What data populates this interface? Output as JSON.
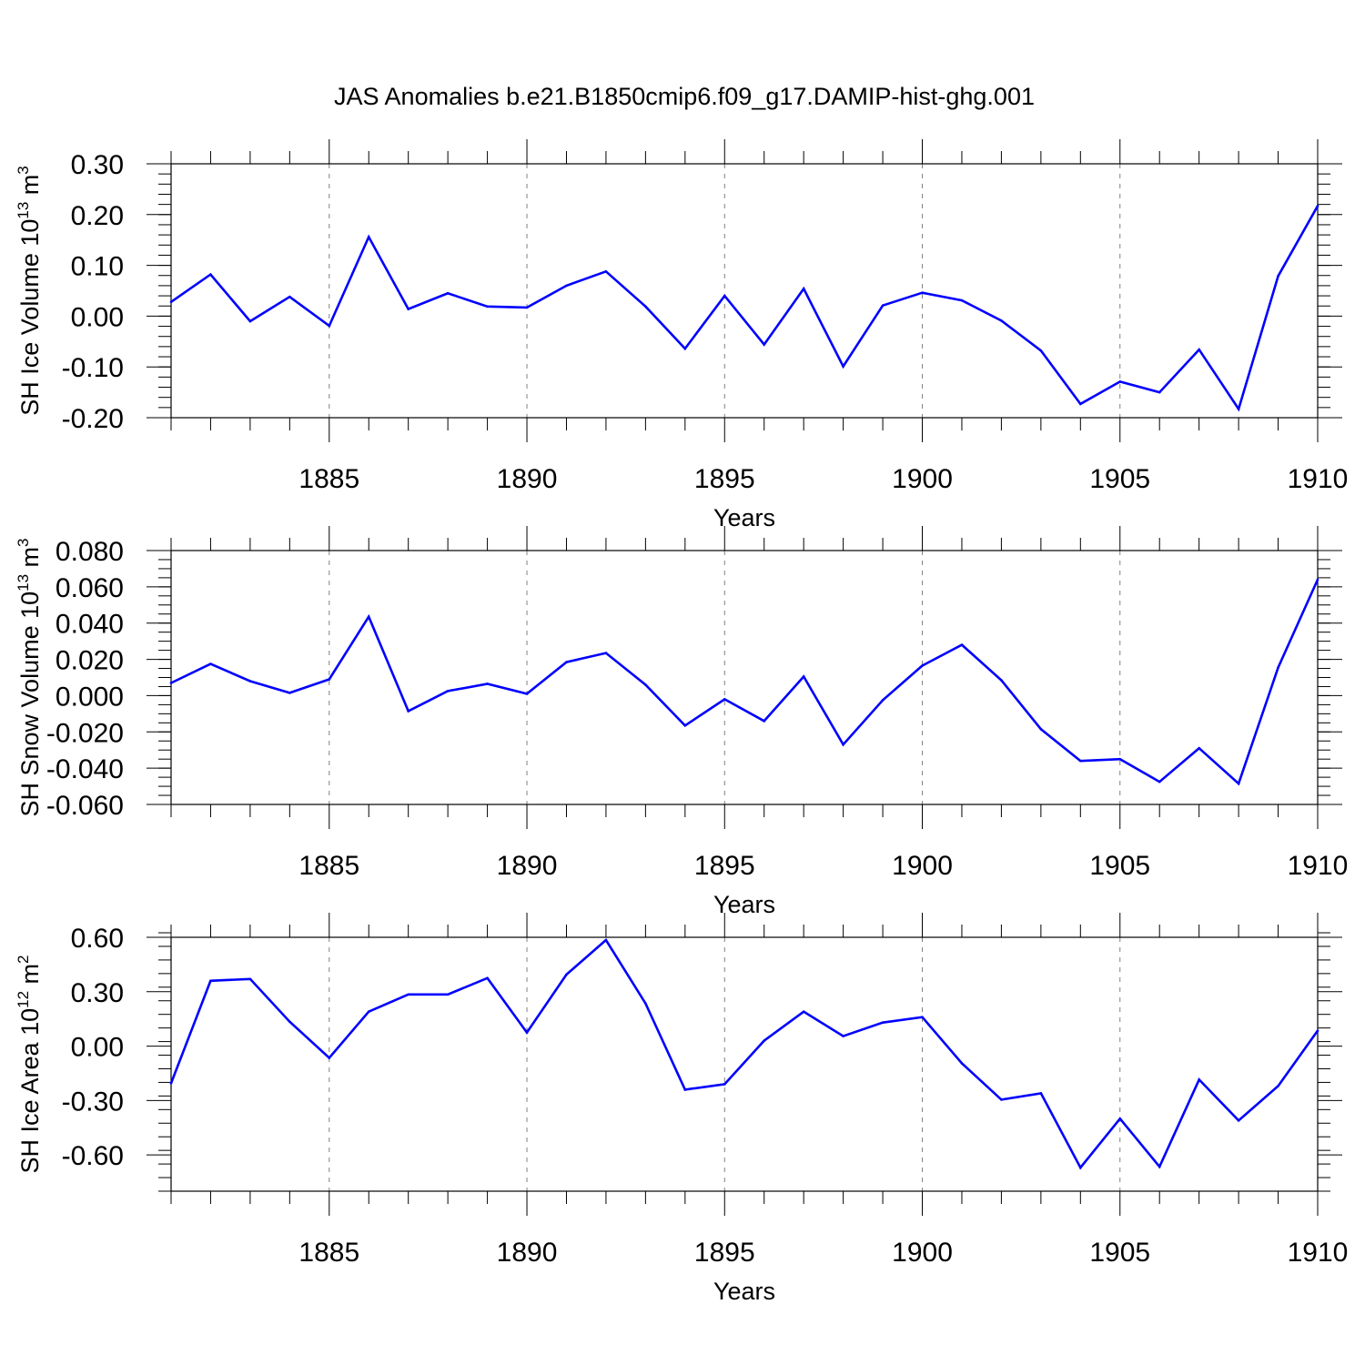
{
  "figure": {
    "title": "JAS Anomalies b.e21.B1850cmip6.f09_g17.DAMIP-hist-ghg.001"
  },
  "colors": {
    "line": "#0000ff",
    "axis": "#000000",
    "grid": "#808080",
    "background": "#ffffff"
  },
  "chart_data": [
    {
      "type": "line",
      "ylabel": {
        "text": "SH Ice Volume 10",
        "exp": "13",
        "unit": " m",
        "unit_exp": "3"
      },
      "xlabel": "Years",
      "xlim": [
        1881,
        1910
      ],
      "ylim": [
        -0.2,
        0.3
      ],
      "yticks": [
        -0.2,
        -0.1,
        0.0,
        0.1,
        0.2,
        0.3
      ],
      "ytick_labels": [
        "-0.20",
        "-0.10",
        "0.00",
        "0.10",
        "0.20",
        "0.30"
      ],
      "yminor_step": 0.02,
      "xticks": [
        1885,
        1890,
        1895,
        1900,
        1905,
        1910
      ],
      "xtick_labels": [
        "1885",
        "1890",
        "1895",
        "1900",
        "1905",
        "1910"
      ],
      "xgrid": "dashed at major ticks",
      "x": [
        1881,
        1882,
        1883,
        1884,
        1885,
        1886,
        1887,
        1888,
        1889,
        1890,
        1891,
        1892,
        1893,
        1894,
        1895,
        1896,
        1897,
        1898,
        1899,
        1900,
        1901,
        1902,
        1903,
        1904,
        1905,
        1906,
        1907,
        1908,
        1909,
        1910
      ],
      "series": [
        {
          "values": [
            0.028,
            0.082,
            -0.01,
            0.038,
            -0.019,
            0.156,
            0.014,
            0.045,
            0.019,
            0.017,
            0.06,
            0.088,
            0.019,
            -0.064,
            0.04,
            -0.056,
            0.054,
            -0.099,
            0.021,
            0.046,
            0.031,
            -0.009,
            -0.068,
            -0.173,
            -0.129,
            -0.15,
            -0.066,
            -0.183,
            0.079,
            0.217
          ]
        }
      ]
    },
    {
      "type": "line",
      "ylabel": {
        "text": "SH Snow Volume 10",
        "exp": "13",
        "unit": " m",
        "unit_exp": "3"
      },
      "xlabel": "Years",
      "xlim": [
        1881,
        1910
      ],
      "ylim": [
        -0.06,
        0.08
      ],
      "yticks": [
        -0.06,
        -0.04,
        -0.02,
        0.0,
        0.02,
        0.04,
        0.06,
        0.08
      ],
      "ytick_labels": [
        "-0.060",
        "-0.040",
        "-0.020",
        "0.000",
        "0.020",
        "0.040",
        "0.060",
        "0.080"
      ],
      "yminor_step": 0.005,
      "xticks": [
        1885,
        1890,
        1895,
        1900,
        1905,
        1910
      ],
      "xtick_labels": [
        "1885",
        "1890",
        "1895",
        "1900",
        "1905",
        "1910"
      ],
      "xgrid": "dashed at major ticks",
      "x": [
        1881,
        1882,
        1883,
        1884,
        1885,
        1886,
        1887,
        1888,
        1889,
        1890,
        1891,
        1892,
        1893,
        1894,
        1895,
        1896,
        1897,
        1898,
        1899,
        1900,
        1901,
        1902,
        1903,
        1904,
        1905,
        1906,
        1907,
        1908,
        1909,
        1910
      ],
      "series": [
        {
          "values": [
            0.007,
            0.0175,
            0.008,
            0.0015,
            0.009,
            0.0435,
            -0.0085,
            0.0025,
            0.0065,
            0.001,
            0.0185,
            0.0235,
            0.006,
            -0.0165,
            -0.002,
            -0.014,
            0.0105,
            -0.027,
            -0.0025,
            0.0165,
            0.028,
            0.0085,
            -0.0185,
            -0.036,
            -0.035,
            -0.0475,
            -0.029,
            -0.0485,
            0.0155,
            0.064
          ]
        }
      ]
    },
    {
      "type": "line",
      "ylabel": {
        "text": "SH Ice Area 10",
        "exp": "12",
        "unit": " m",
        "unit_exp": "2"
      },
      "xlabel": "Years",
      "xlim": [
        1881,
        1910
      ],
      "ylim": [
        -0.8,
        0.6
      ],
      "yticks": [
        -0.6,
        -0.3,
        0.0,
        0.3,
        0.6
      ],
      "ytick_labels": [
        "-0.60",
        "-0.30",
        "0.00",
        "0.30",
        "0.60"
      ],
      "yminor_step": 0.075,
      "xticks": [
        1885,
        1890,
        1895,
        1900,
        1905,
        1910
      ],
      "xtick_labels": [
        "1885",
        "1890",
        "1895",
        "1900",
        "1905",
        "1910"
      ],
      "xgrid": "dashed at major ticks",
      "x": [
        1881,
        1882,
        1883,
        1884,
        1885,
        1886,
        1887,
        1888,
        1889,
        1890,
        1891,
        1892,
        1893,
        1894,
        1895,
        1896,
        1897,
        1898,
        1899,
        1900,
        1901,
        1902,
        1903,
        1904,
        1905,
        1906,
        1907,
        1908,
        1909,
        1910
      ],
      "series": [
        {
          "values": [
            -0.205,
            0.36,
            0.37,
            0.135,
            -0.065,
            0.19,
            0.285,
            0.285,
            0.375,
            0.075,
            0.395,
            0.585,
            0.235,
            -0.24,
            -0.21,
            0.03,
            0.19,
            0.055,
            0.13,
            0.16,
            -0.095,
            -0.295,
            -0.26,
            -0.67,
            -0.4,
            -0.665,
            -0.185,
            -0.41,
            -0.22,
            0.085
          ]
        }
      ]
    }
  ]
}
